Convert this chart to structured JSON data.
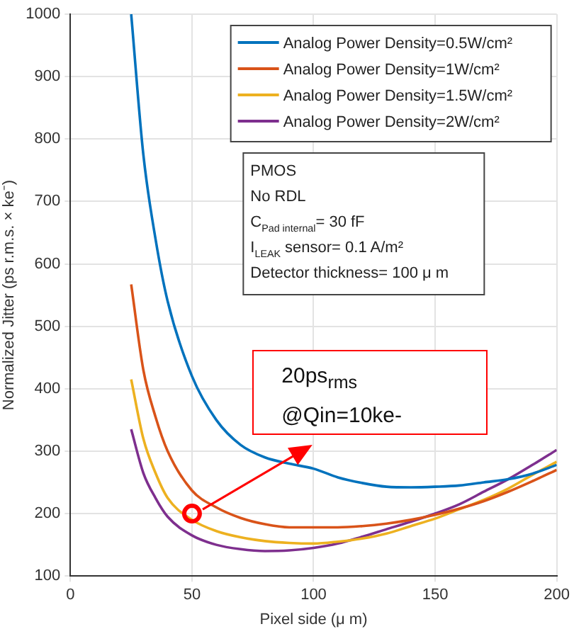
{
  "chart_data": {
    "type": "line",
    "xlabel": "Pixel side (μ m)",
    "ylabel": "Normalized Jitter (ps r.m.s. × ke⁻)",
    "xlim": [
      0,
      200
    ],
    "xticks": [
      0,
      50,
      100,
      150,
      200
    ],
    "ylim": [
      100,
      1000
    ],
    "yticks": [
      100,
      200,
      300,
      400,
      500,
      600,
      700,
      800,
      900,
      1000
    ],
    "grid": true,
    "legend": "top right",
    "marker": "none",
    "line_style": "solid",
    "x": [
      25,
      30,
      35,
      40,
      50,
      60,
      70,
      80,
      90,
      100,
      110,
      120,
      130,
      140,
      150,
      160,
      170,
      180,
      190,
      200
    ],
    "series": [
      {
        "name": "Analog Power Density=0.5W/cm²",
        "color": "#0072bd",
        "values": [
          1000,
          775,
          640,
          540,
          420,
          350,
          310,
          290,
          280,
          272,
          258,
          249,
          243,
          242,
          243,
          245,
          250,
          255,
          264,
          278
        ]
      },
      {
        "name": "Analog Power Density=1W/cm²",
        "color": "#d95319",
        "values": [
          567,
          430,
          355,
          300,
          237,
          210,
          193,
          183,
          178,
          178,
          178,
          180,
          184,
          190,
          198,
          208,
          220,
          235,
          252,
          270
        ]
      },
      {
        "name": "Analog Power Density=1.5W/cm²",
        "color": "#edb120",
        "values": [
          415,
          320,
          265,
          225,
          190,
          172,
          162,
          156,
          153,
          152,
          155,
          160,
          168,
          180,
          192,
          207,
          222,
          240,
          262,
          283
        ]
      },
      {
        "name": "Analog Power Density=2W/cm²",
        "color": "#7e2f8e",
        "values": [
          335,
          265,
          225,
          195,
          165,
          150,
          143,
          140,
          141,
          145,
          152,
          163,
          175,
          187,
          200,
          215,
          235,
          255,
          278,
          302
        ]
      }
    ],
    "annotations": [
      "PMOS",
      "No RDL",
      "C$_{Pad internal}$= 30 fF",
      "I$_{LEAK}$ sensor= 0.1 A/m²",
      "Detector thickness= 100 μ m",
      {
        "text": "20ps$_{rms}$\n@Qin=10ke-",
        "x": 50,
        "y": 200
      }
    ]
  }
}
